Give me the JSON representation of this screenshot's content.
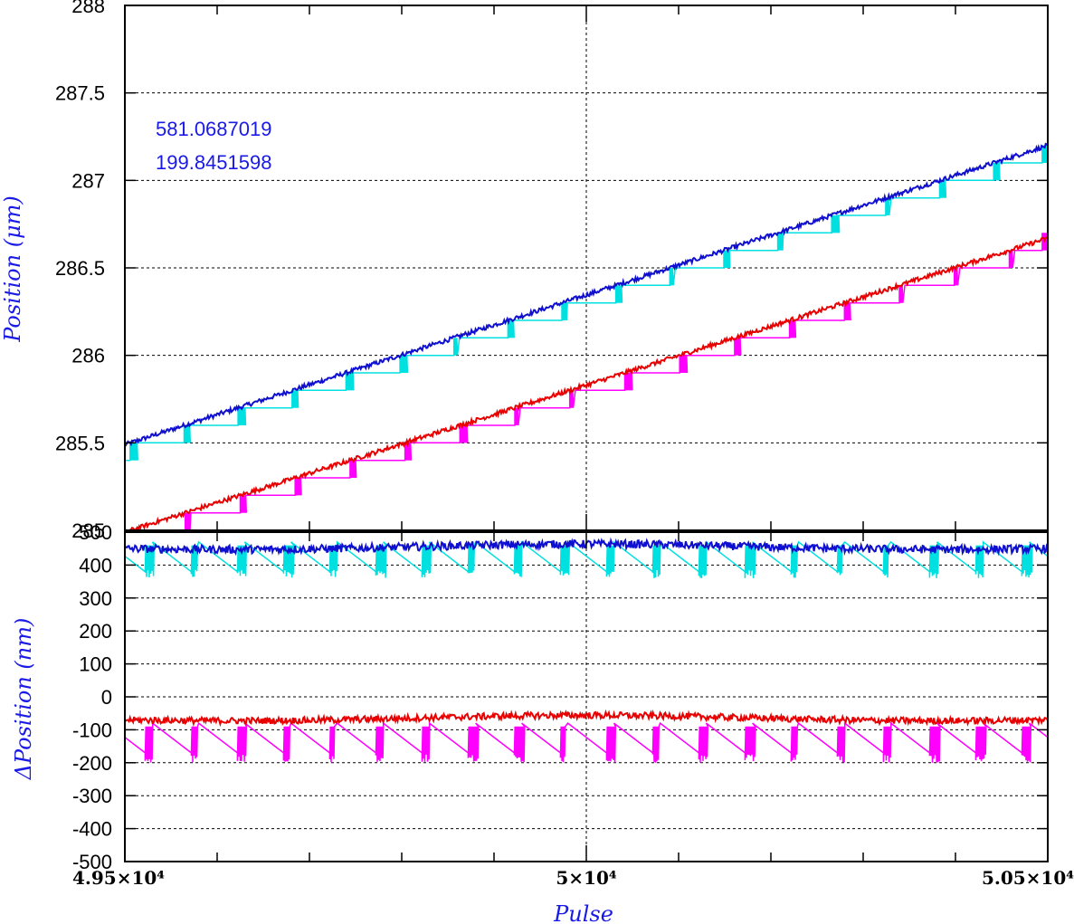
{
  "chart_data": [
    {
      "type": "line",
      "ylabel": "Position (μm)",
      "xlim": [
        49500,
        50500
      ],
      "ylim": [
        285,
        288
      ],
      "y_ticks": [
        "285",
        "285.5",
        "286",
        "286.5",
        "287",
        "287.5",
        "288"
      ],
      "grid": "dashed",
      "annotations": [
        "581.0687019",
        "199.8451598"
      ],
      "series": [
        {
          "color": "#0f0fd0",
          "style": "noisy-linear",
          "x": [
            49500,
            50500
          ],
          "y": [
            285.49,
            287.2
          ]
        },
        {
          "color": "#00e0e0",
          "style": "staircase",
          "x": [
            49500,
            50500
          ],
          "y": [
            285.49,
            287.2
          ]
        },
        {
          "color": "#e80000",
          "style": "noisy-linear",
          "x": [
            49500,
            50500
          ],
          "y": [
            284.99,
            286.67
          ]
        },
        {
          "color": "#ff00ff",
          "style": "staircase",
          "x": [
            49500,
            50500
          ],
          "y": [
            284.99,
            286.67
          ]
        }
      ]
    },
    {
      "type": "line",
      "xlabel": "Pulse",
      "ylabel": "ΔPosition (nm)",
      "xlim": [
        49500,
        50500
      ],
      "ylim": [
        -500,
        500
      ],
      "y_ticks": [
        "-500",
        "-400",
        "-300",
        "-200",
        "-100",
        "0",
        "100",
        "200",
        "300",
        "400",
        "500"
      ],
      "x_ticks": [
        "4.95×10⁴",
        "5×10⁴",
        "5.05×10⁴"
      ],
      "grid": "dashed",
      "series": [
        {
          "color": "#0f0fd0",
          "style": "noisy-band",
          "x": [
            49500,
            50500
          ],
          "y": [
            450,
            450
          ],
          "noise": 12
        },
        {
          "color": "#00e0e0",
          "style": "sawtooth",
          "x": [
            49500,
            50500
          ],
          "y": [
            470,
            380
          ],
          "spikes_min": 360
        },
        {
          "color": "#e80000",
          "style": "noisy-band",
          "x": [
            49500,
            50500
          ],
          "y": [
            -70,
            -70
          ],
          "noise": 10
        },
        {
          "color": "#ff00ff",
          "style": "sawtooth",
          "x": [
            49500,
            50500
          ],
          "y": [
            -80,
            -170
          ],
          "spikes_min": -200
        }
      ]
    }
  ]
}
